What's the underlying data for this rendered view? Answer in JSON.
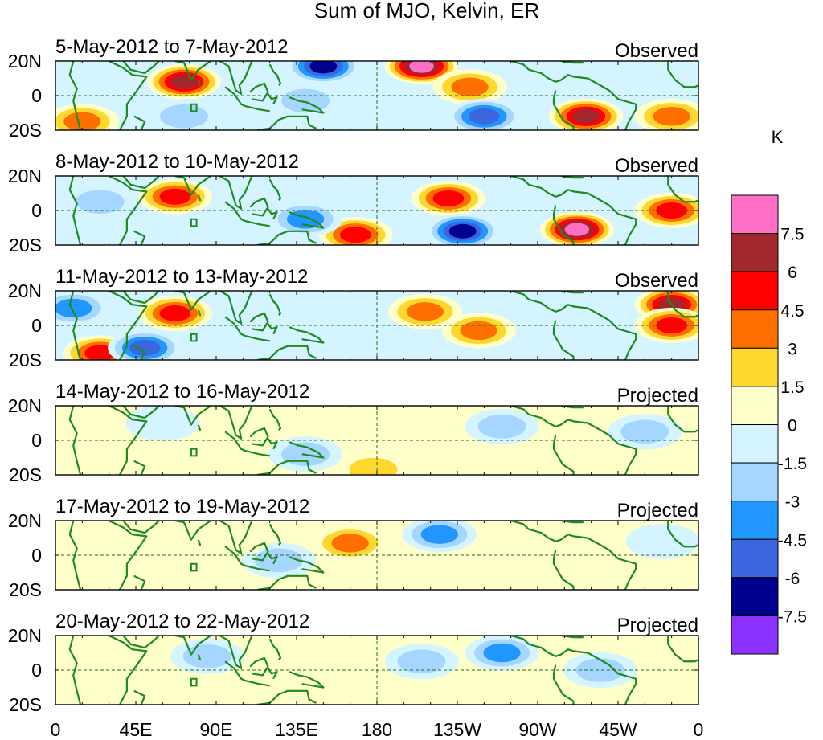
{
  "title": "Sum of MJO, Kelvin, ER",
  "panels": [
    {
      "dates": "5-May-2012 to 7-May-2012",
      "status": "Observed"
    },
    {
      "dates": "8-May-2012 to 10-May-2012",
      "status": "Observed"
    },
    {
      "dates": "11-May-2012 to 13-May-2012",
      "status": "Observed"
    },
    {
      "dates": "14-May-2012 to 16-May-2012",
      "status": "Projected"
    },
    {
      "dates": "17-May-2012 to 19-May-2012",
      "status": "Projected"
    },
    {
      "dates": "20-May-2012 to 22-May-2012",
      "status": "Projected"
    }
  ],
  "lat_labels": [
    "20N",
    "0",
    "20S"
  ],
  "lon_labels": [
    "0",
    "45E",
    "90E",
    "135E",
    "180",
    "135W",
    "90W",
    "45W",
    "0"
  ],
  "colorbar": {
    "unit": "K",
    "tick_labels": [
      "7.5",
      "6",
      "4.5",
      "3",
      "1.5",
      "0",
      "-1.5",
      "-3",
      "-4.5",
      "-6",
      "-7.5"
    ],
    "colors_top_to_bottom": [
      "#ff6ec7",
      "#a0282d",
      "#ff0000",
      "#ff6f00",
      "#ffd82f",
      "#ffffca",
      "#d4f5ff",
      "#a4d6ff",
      "#2196ff",
      "#3a67de",
      "#00008f",
      "#8c32ff"
    ]
  },
  "chart_data": {
    "type": "heatmap",
    "title": "Sum of MJO, Kelvin, ER",
    "colorbar_unit": "K",
    "color_levels": [
      -7.5,
      -6,
      -4.5,
      -3,
      -1.5,
      0,
      1.5,
      3,
      4.5,
      6,
      7.5
    ],
    "lat_range": [
      -20,
      20
    ],
    "lon_range": [
      0,
      360
    ],
    "panels": [
      {
        "label": "5-May-2012 to 7-May-2012",
        "status": "Observed",
        "blobs": [
          {
            "lon": 72,
            "lat": 8,
            "value": 6.5
          },
          {
            "lon": 150,
            "lat": 17,
            "value": -7.5
          },
          {
            "lon": 205,
            "lat": 17,
            "value": 8
          },
          {
            "lon": 232,
            "lat": 5,
            "value": 4.5
          },
          {
            "lon": 297,
            "lat": -12,
            "value": 6.5
          },
          {
            "lon": 345,
            "lat": -12,
            "value": 4.5
          },
          {
            "lon": 15,
            "lat": -15,
            "value": 4
          },
          {
            "lon": 240,
            "lat": -12,
            "value": -6
          },
          {
            "lon": 140,
            "lat": -3,
            "value": -3
          },
          {
            "lon": 72,
            "lat": -12,
            "value": -3
          }
        ]
      },
      {
        "label": "8-May-2012 to 10-May-2012",
        "status": "Observed",
        "blobs": [
          {
            "lon": 67,
            "lat": 8,
            "value": 6
          },
          {
            "lon": 220,
            "lat": 7,
            "value": 5
          },
          {
            "lon": 292,
            "lat": -11,
            "value": 8
          },
          {
            "lon": 345,
            "lat": 0,
            "value": 6
          },
          {
            "lon": 168,
            "lat": -14,
            "value": 5
          },
          {
            "lon": 228,
            "lat": -12,
            "value": -7
          },
          {
            "lon": 140,
            "lat": -5,
            "value": -4.5
          },
          {
            "lon": 25,
            "lat": 5,
            "value": -3
          }
        ]
      },
      {
        "label": "11-May-2012 to 13-May-2012",
        "status": "Observed",
        "blobs": [
          {
            "lon": 67,
            "lat": 7,
            "value": 5
          },
          {
            "lon": 207,
            "lat": 8,
            "value": 4.5
          },
          {
            "lon": 237,
            "lat": -3,
            "value": 4.5
          },
          {
            "lon": 345,
            "lat": 12,
            "value": 6.5
          },
          {
            "lon": 345,
            "lat": 0,
            "value": 6
          },
          {
            "lon": 25,
            "lat": -16,
            "value": 5
          },
          {
            "lon": 50,
            "lat": -13,
            "value": -6
          },
          {
            "lon": 10,
            "lat": 10,
            "value": -4.5
          }
        ]
      },
      {
        "label": "14-May-2012 to 16-May-2012",
        "status": "Projected",
        "blobs": [
          {
            "lon": 178,
            "lat": -17,
            "value": 3
          },
          {
            "lon": 205,
            "lat": 5,
            "value": 1.5
          },
          {
            "lon": 140,
            "lat": -8,
            "value": -3
          },
          {
            "lon": 250,
            "lat": 8,
            "value": -3
          },
          {
            "lon": 330,
            "lat": 5,
            "value": -3
          },
          {
            "lon": 60,
            "lat": 10,
            "value": -1.5
          }
        ]
      },
      {
        "label": "17-May-2012 to 19-May-2012",
        "status": "Projected",
        "blobs": [
          {
            "lon": 165,
            "lat": 7,
            "value": 4.5
          },
          {
            "lon": 215,
            "lat": 12,
            "value": -4.5
          },
          {
            "lon": 125,
            "lat": -3,
            "value": -3
          },
          {
            "lon": 100,
            "lat": 10,
            "value": 1.5
          },
          {
            "lon": 340,
            "lat": 8,
            "value": -1.5
          }
        ]
      },
      {
        "label": "20-May-2012 to 22-May-2012",
        "status": "Projected",
        "blobs": [
          {
            "lon": 250,
            "lat": 10,
            "value": -4.5
          },
          {
            "lon": 205,
            "lat": 5,
            "value": -3
          },
          {
            "lon": 85,
            "lat": 8,
            "value": -3
          },
          {
            "lon": 160,
            "lat": 0,
            "value": 1.5
          },
          {
            "lon": 305,
            "lat": 0,
            "value": -3
          },
          {
            "lon": 30,
            "lat": 5,
            "value": 1.5
          }
        ]
      }
    ]
  }
}
